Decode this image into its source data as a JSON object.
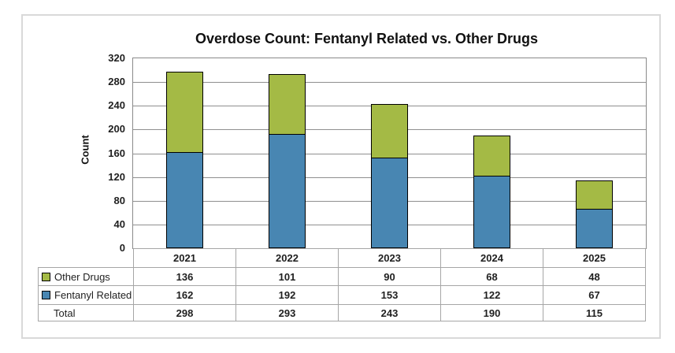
{
  "chart_data": {
    "type": "bar",
    "stacked": true,
    "title": "Overdose Count: Fentanyl Related vs. Other Drugs",
    "ylabel": "Count",
    "xlabel": "",
    "categories": [
      "2021",
      "2022",
      "2023",
      "2024",
      "2025"
    ],
    "series": [
      {
        "name": "Fentanyl Related",
        "color": "#4886b2",
        "values": [
          162,
          192,
          153,
          122,
          67
        ]
      },
      {
        "name": "Other Drugs",
        "color": "#a4ba45",
        "values": [
          136,
          101,
          90,
          68,
          48
        ]
      }
    ],
    "totals": {
      "label": "Total",
      "values": [
        298,
        293,
        243,
        190,
        115
      ]
    },
    "ylim": [
      0,
      320
    ],
    "ytick_step": 40,
    "yticks": [
      320,
      280,
      240,
      200,
      160,
      120,
      80,
      40,
      0
    ],
    "grid": true,
    "legend_position": "table-rows-left",
    "table_row_order": [
      "Other Drugs",
      "Fentanyl Related",
      "Total"
    ]
  }
}
